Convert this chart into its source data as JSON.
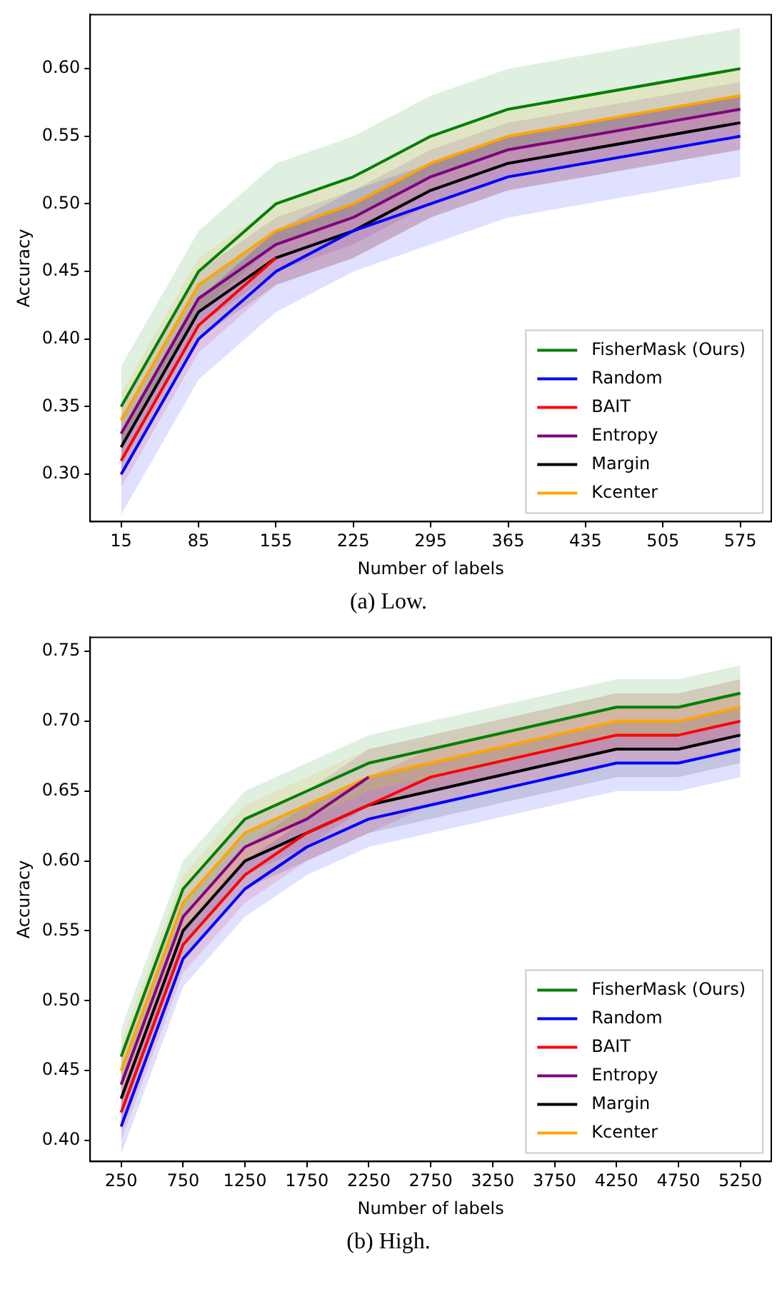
{
  "chart_data": [
    {
      "type": "line",
      "xlabel": "Number of labels",
      "ylabel": "Accuracy",
      "annotations": [
        "(a) Low."
      ],
      "legend": "bottom right",
      "grid": false,
      "x": [
        15,
        85,
        155,
        225,
        295,
        365,
        575
      ],
      "xlim": [
        -13,
        603
      ],
      "xticks": [
        15,
        85,
        155,
        225,
        295,
        365,
        435,
        505,
        575
      ],
      "ylim": [
        0.265,
        0.64
      ],
      "yticks": [
        {
          "value": 0.3,
          "label": "0.30"
        },
        {
          "value": 0.35,
          "label": "0.35"
        },
        {
          "value": 0.4,
          "label": "0.40"
        },
        {
          "value": 0.45,
          "label": "0.45"
        },
        {
          "value": 0.5,
          "label": "0.50"
        },
        {
          "value": 0.55,
          "label": "0.55"
        },
        {
          "value": 0.6,
          "label": "0.60"
        }
      ],
      "series": [
        {
          "name": "FisherMask (Ours)",
          "color": "#008000",
          "values": [
            0.35,
            0.45,
            0.5,
            0.52,
            0.55,
            0.57,
            0.6
          ],
          "lower": [
            0.32,
            0.42,
            0.47,
            0.49,
            0.52,
            0.54,
            0.57
          ],
          "upper": [
            0.38,
            0.48,
            0.53,
            0.55,
            0.58,
            0.6,
            0.63
          ]
        },
        {
          "name": "Random",
          "color": "#0000ff",
          "values": [
            0.3,
            0.4,
            0.45,
            0.48,
            0.5,
            0.52,
            0.55
          ],
          "lower": [
            0.27,
            0.37,
            0.42,
            0.45,
            0.47,
            0.49,
            0.52
          ],
          "upper": [
            0.33,
            0.43,
            0.48,
            0.51,
            0.53,
            0.55,
            0.58
          ]
        },
        {
          "name": "BAIT",
          "color": "#ff0000",
          "values": [
            0.31,
            0.41,
            0.46,
            null,
            null,
            null,
            null
          ],
          "lower": [
            0.29,
            0.39,
            0.44,
            0.46,
            0.49,
            0.51,
            0.54
          ],
          "upper": [
            0.33,
            0.43,
            0.48,
            0.5,
            0.53,
            0.55,
            0.58
          ]
        },
        {
          "name": "Entropy",
          "color": "#800080",
          "values": [
            0.33,
            0.43,
            0.47,
            0.49,
            0.52,
            0.54,
            0.57
          ],
          "lower": [
            0.31,
            0.41,
            0.45,
            0.47,
            0.5,
            0.52,
            0.55
          ],
          "upper": [
            0.35,
            0.45,
            0.49,
            0.51,
            0.54,
            0.56,
            0.59
          ]
        },
        {
          "name": "Margin",
          "color": "#000000",
          "values": [
            0.32,
            0.42,
            0.46,
            0.48,
            0.51,
            0.53,
            0.56
          ],
          "lower": [
            0.3,
            0.4,
            0.44,
            0.46,
            0.49,
            0.51,
            0.54
          ],
          "upper": [
            0.34,
            0.44,
            0.48,
            0.5,
            0.53,
            0.55,
            0.58
          ]
        },
        {
          "name": "Kcenter",
          "color": "#ffa500",
          "values": [
            0.34,
            0.44,
            0.48,
            0.5,
            0.53,
            0.55,
            0.58
          ],
          "lower": [
            0.32,
            0.42,
            0.46,
            0.48,
            0.51,
            0.53,
            0.56
          ],
          "upper": [
            0.36,
            0.46,
            0.5,
            0.52,
            0.55,
            0.57,
            0.6
          ]
        }
      ]
    },
    {
      "type": "line",
      "xlabel": "Number of labels",
      "ylabel": "Accuracy",
      "annotations": [
        "(b) High."
      ],
      "legend": "bottom right",
      "grid": false,
      "x": [
        250,
        750,
        1250,
        1750,
        2250,
        2750,
        4250,
        4750,
        5250
      ],
      "xlim": [
        0,
        5500
      ],
      "xticks": [
        250,
        750,
        1250,
        1750,
        2250,
        2750,
        3250,
        3750,
        4250,
        4750,
        5250
      ],
      "ylim": [
        0.385,
        0.76
      ],
      "yticks": [
        {
          "value": 0.4,
          "label": "0.40"
        },
        {
          "value": 0.45,
          "label": "0.45"
        },
        {
          "value": 0.5,
          "label": "0.50"
        },
        {
          "value": 0.55,
          "label": "0.55"
        },
        {
          "value": 0.6,
          "label": "0.60"
        },
        {
          "value": 0.65,
          "label": "0.65"
        },
        {
          "value": 0.7,
          "label": "0.70"
        },
        {
          "value": 0.75,
          "label": "0.75"
        }
      ],
      "series": [
        {
          "name": "FisherMask (Ours)",
          "color": "#008000",
          "values": [
            0.46,
            0.58,
            0.63,
            0.65,
            0.67,
            0.68,
            0.71,
            0.71,
            0.72
          ],
          "lower": [
            0.44,
            0.56,
            0.61,
            0.63,
            0.65,
            0.66,
            0.69,
            0.69,
            0.7
          ],
          "upper": [
            0.48,
            0.6,
            0.65,
            0.67,
            0.69,
            0.7,
            0.73,
            0.73,
            0.74
          ]
        },
        {
          "name": "Random",
          "color": "#0000ff",
          "values": [
            0.41,
            0.53,
            0.58,
            0.61,
            0.63,
            0.64,
            0.67,
            0.67,
            0.68
          ],
          "lower": [
            0.39,
            0.51,
            0.56,
            0.59,
            0.61,
            0.62,
            0.65,
            0.65,
            0.66
          ],
          "upper": [
            0.43,
            0.55,
            0.6,
            0.63,
            0.65,
            0.66,
            0.69,
            0.69,
            0.7
          ]
        },
        {
          "name": "BAIT",
          "color": "#ff0000",
          "values": [
            0.42,
            0.54,
            0.59,
            0.62,
            0.64,
            0.66,
            0.69,
            0.69,
            0.7
          ],
          "lower": [
            0.4,
            0.52,
            0.57,
            0.6,
            0.62,
            0.64,
            0.67,
            0.67,
            0.68
          ],
          "upper": [
            0.44,
            0.56,
            0.61,
            0.64,
            0.66,
            0.68,
            0.71,
            0.71,
            0.72
          ]
        },
        {
          "name": "Entropy",
          "color": "#800080",
          "values": [
            0.44,
            0.56,
            0.61,
            0.63,
            0.66,
            null,
            null,
            null,
            null
          ],
          "lower": [
            0.42,
            0.54,
            0.59,
            0.61,
            0.64,
            0.65,
            0.68,
            0.68,
            0.69
          ],
          "upper": [
            0.46,
            0.58,
            0.63,
            0.65,
            0.68,
            0.69,
            0.72,
            0.72,
            0.73
          ]
        },
        {
          "name": "Margin",
          "color": "#000000",
          "values": [
            0.43,
            0.55,
            0.6,
            0.62,
            0.64,
            0.65,
            0.68,
            0.68,
            0.69
          ],
          "lower": [
            0.41,
            0.53,
            0.58,
            0.6,
            0.62,
            0.63,
            0.66,
            0.66,
            0.67
          ],
          "upper": [
            0.45,
            0.57,
            0.62,
            0.64,
            0.66,
            0.67,
            0.7,
            0.7,
            0.71
          ]
        },
        {
          "name": "Kcenter",
          "color": "#ffa500",
          "values": [
            0.45,
            0.57,
            0.62,
            0.64,
            0.66,
            0.67,
            0.7,
            0.7,
            0.71
          ],
          "lower": [
            0.43,
            0.55,
            0.6,
            0.62,
            0.64,
            0.65,
            0.68,
            0.68,
            0.69
          ],
          "upper": [
            0.47,
            0.59,
            0.64,
            0.66,
            0.68,
            0.69,
            0.72,
            0.72,
            0.73
          ]
        }
      ]
    }
  ]
}
